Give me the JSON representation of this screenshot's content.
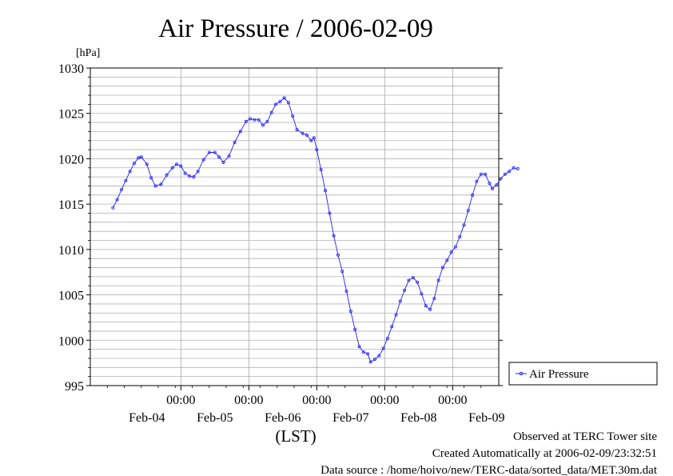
{
  "chart_data": {
    "type": "line",
    "title": "Air Pressure / 2006-02-09",
    "yunit": "[hPa]",
    "xlabel": "(LST)",
    "ylim": [
      995,
      1030
    ],
    "y_ticks": [
      "995",
      "1000",
      "1005",
      "1010",
      "1015",
      "1020",
      "1025",
      "1030"
    ],
    "x_time_ticks": [
      "00:00",
      "00:00",
      "00:00",
      "00:00",
      "00:00"
    ],
    "x_date_labels": [
      "Feb-04",
      "Feb-05",
      "Feb-06",
      "Feb-07",
      "Feb-08",
      "Feb-09"
    ],
    "legend": {
      "position": "right",
      "label": "Air Pressure"
    },
    "grid": true,
    "series_color": "#2020ff",
    "series": [
      {
        "name": "Air Pressure",
        "points": [
          [
            "2006-02-04 00:00",
            1014.6
          ],
          [
            "2006-02-04 01:30",
            1015.5
          ],
          [
            "2006-02-04 03:00",
            1016.6
          ],
          [
            "2006-02-04 04:30",
            1017.6
          ],
          [
            "2006-02-04 06:00",
            1018.6
          ],
          [
            "2006-02-04 07:30",
            1019.5
          ],
          [
            "2006-02-04 09:00",
            1020.1
          ],
          [
            "2006-02-04 10:00",
            1020.2
          ],
          [
            "2006-02-04 12:00",
            1019.4
          ],
          [
            "2006-02-04 13:30",
            1017.9
          ],
          [
            "2006-02-04 15:00",
            1017.0
          ],
          [
            "2006-02-04 17:00",
            1017.2
          ],
          [
            "2006-02-04 19:00",
            1018.2
          ],
          [
            "2006-02-04 21:00",
            1019.0
          ],
          [
            "2006-02-04 22:30",
            1019.4
          ],
          [
            "2006-02-05 00:00",
            1019.2
          ],
          [
            "2006-02-05 01:30",
            1018.4
          ],
          [
            "2006-02-05 03:00",
            1018.1
          ],
          [
            "2006-02-05 04:30",
            1018.0
          ],
          [
            "2006-02-05 06:00",
            1018.6
          ],
          [
            "2006-02-05 08:00",
            1019.9
          ],
          [
            "2006-02-05 10:00",
            1020.7
          ],
          [
            "2006-02-05 12:00",
            1020.7
          ],
          [
            "2006-02-05 13:30",
            1020.2
          ],
          [
            "2006-02-05 15:00",
            1019.6
          ],
          [
            "2006-02-05 17:00",
            1020.3
          ],
          [
            "2006-02-05 19:00",
            1021.8
          ],
          [
            "2006-02-05 21:00",
            1023.0
          ],
          [
            "2006-02-05 23:00",
            1024.1
          ],
          [
            "2006-02-06 00:30",
            1024.4
          ],
          [
            "2006-02-06 02:00",
            1024.3
          ],
          [
            "2006-02-06 03:30",
            1024.3
          ],
          [
            "2006-02-06 05:00",
            1023.7
          ],
          [
            "2006-02-06 06:30",
            1024.1
          ],
          [
            "2006-02-06 08:00",
            1025.1
          ],
          [
            "2006-02-06 09:30",
            1026.0
          ],
          [
            "2006-02-06 11:00",
            1026.3
          ],
          [
            "2006-02-06 12:30",
            1026.7
          ],
          [
            "2006-02-06 14:00",
            1026.2
          ],
          [
            "2006-02-06 15:30",
            1024.7
          ],
          [
            "2006-02-06 17:00",
            1023.2
          ],
          [
            "2006-02-06 19:00",
            1022.8
          ],
          [
            "2006-02-06 20:30",
            1022.6
          ],
          [
            "2006-02-06 22:00",
            1022.0
          ],
          [
            "2006-02-06 23:00",
            1022.3
          ],
          [
            "2006-02-07 00:00",
            1021.0
          ],
          [
            "2006-02-07 01:30",
            1018.8
          ],
          [
            "2006-02-07 03:00",
            1016.5
          ],
          [
            "2006-02-07 04:30",
            1014.0
          ],
          [
            "2006-02-07 06:00",
            1011.5
          ],
          [
            "2006-02-07 07:30",
            1009.4
          ],
          [
            "2006-02-07 09:00",
            1007.6
          ],
          [
            "2006-02-07 10:30",
            1005.4
          ],
          [
            "2006-02-07 12:00",
            1003.2
          ],
          [
            "2006-02-07 13:30",
            1001.2
          ],
          [
            "2006-02-07 15:00",
            999.3
          ],
          [
            "2006-02-07 16:30",
            998.7
          ],
          [
            "2006-02-07 18:00",
            998.5
          ],
          [
            "2006-02-07 19:00",
            997.6
          ],
          [
            "2006-02-07 20:30",
            997.9
          ],
          [
            "2006-02-07 22:00",
            998.3
          ],
          [
            "2006-02-07 23:30",
            999.1
          ],
          [
            "2006-02-08 01:00",
            1000.2
          ],
          [
            "2006-02-08 02:30",
            1001.5
          ],
          [
            "2006-02-08 04:00",
            1002.8
          ],
          [
            "2006-02-08 05:30",
            1004.3
          ],
          [
            "2006-02-08 07:00",
            1005.5
          ],
          [
            "2006-02-08 08:30",
            1006.6
          ],
          [
            "2006-02-08 10:00",
            1006.9
          ],
          [
            "2006-02-08 11:30",
            1006.4
          ],
          [
            "2006-02-08 13:00",
            1005.1
          ],
          [
            "2006-02-08 14:30",
            1003.8
          ],
          [
            "2006-02-08 16:00",
            1003.4
          ],
          [
            "2006-02-08 17:30",
            1004.6
          ],
          [
            "2006-02-08 19:00",
            1006.6
          ],
          [
            "2006-02-08 20:30",
            1008.0
          ],
          [
            "2006-02-08 22:00",
            1008.8
          ],
          [
            "2006-02-08 23:30",
            1009.7
          ],
          [
            "2006-02-09 01:00",
            1010.3
          ],
          [
            "2006-02-09 02:30",
            1011.4
          ],
          [
            "2006-02-09 04:00",
            1012.7
          ],
          [
            "2006-02-09 05:30",
            1014.3
          ],
          [
            "2006-02-09 07:00",
            1016.0
          ],
          [
            "2006-02-09 08:30",
            1017.5
          ],
          [
            "2006-02-09 10:00",
            1018.3
          ],
          [
            "2006-02-09 11:30",
            1018.3
          ],
          [
            "2006-02-09 13:00",
            1017.3
          ],
          [
            "2006-02-09 14:00",
            1016.7
          ],
          [
            "2006-02-09 15:30",
            1017.1
          ],
          [
            "2006-02-09 17:00",
            1017.8
          ],
          [
            "2006-02-09 18:30",
            1018.3
          ],
          [
            "2006-02-09 20:00",
            1018.6
          ],
          [
            "2006-02-09 21:30",
            1019.0
          ],
          [
            "2006-02-09 23:00",
            1018.9
          ]
        ]
      }
    ]
  },
  "footer": {
    "line1": "Observed at TERC Tower site",
    "line2": "Created Automatically at 2006-02-09/23:32:51",
    "line3": "Data source : /home/hoivo/new/TERC-data/sorted_data/MET.30m.dat"
  }
}
